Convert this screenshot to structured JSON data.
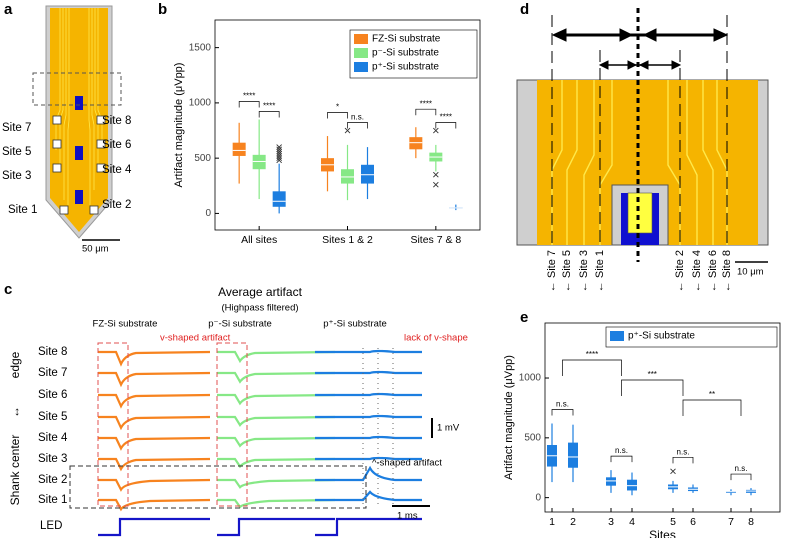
{
  "panels": {
    "a": {
      "panel_label": "a",
      "sites": [
        "Site 7",
        "Site 8",
        "Site 5",
        "Site 6",
        "Site 3",
        "Site 4",
        "Site 1",
        "Site 2"
      ],
      "scale": "50 μm"
    },
    "c": {
      "panel_label": "c",
      "title": "Average artifact",
      "subtitle": "(Highpass filtered)",
      "columns": [
        "FZ-Si substrate",
        "p⁻-Si substrate",
        "p⁺-Si substrate"
      ],
      "notes": [
        "v-shaped artifact",
        "lack of v-shape",
        "^-shaped artifact"
      ],
      "rows": [
        "Site 8",
        "Site 7",
        "Site 6",
        "Site 5",
        "Site 4",
        "Site 3",
        "Site 2",
        "Site 1"
      ],
      "side": [
        "edge",
        "↔",
        "Shank center"
      ],
      "scale_v": "1 mV",
      "scale_t": "1 ms",
      "led": "LED"
    },
    "d": {
      "panel_label": "d",
      "sites": [
        "← Site 7",
        "← Site 5",
        "← Site 3",
        "← Site 1",
        "← Site 2",
        "← Site 4",
        "← Site 6",
        "← Site 8"
      ],
      "scale": "10 μm"
    }
  },
  "chart_data": [
    {
      "type": "box",
      "panel_label": "b",
      "y_label": "Artifact magnitude (μVpp)",
      "categories": [
        "All sites",
        "Sites 1 & 2",
        "Sites 7 & 8"
      ],
      "ylim": [
        -150,
        1750
      ],
      "yticks": [
        0,
        500,
        1000,
        1500
      ],
      "legend": "upper right",
      "series": [
        {
          "name": "FZ-Si substrate",
          "color": "#f7831f",
          "values": [
            {
              "min": 270,
              "q1": 520,
              "median": 570,
              "q3": 640,
              "max": 820
            },
            {
              "min": 200,
              "q1": 380,
              "median": 440,
              "q3": 500,
              "max": 700
            },
            {
              "min": 500,
              "q1": 580,
              "median": 640,
              "q3": 690,
              "max": 780
            }
          ]
        },
        {
          "name": "p⁻-Si substrate",
          "color": "#86e886",
          "values": [
            {
              "min": 130,
              "q1": 400,
              "median": 470,
              "q3": 530,
              "max": 850
            },
            {
              "min": 120,
              "q1": 270,
              "median": 330,
              "q3": 400,
              "max": 620,
              "outliers": [
                750
              ]
            },
            {
              "min": 380,
              "q1": 470,
              "median": 510,
              "q3": 550,
              "max": 620,
              "outliers": [
                750,
                350,
                260
              ]
            }
          ]
        },
        {
          "name": "p⁺-Si substrate",
          "color": "#1c7ee0",
          "values": [
            {
              "min": 0,
              "q1": 60,
              "median": 110,
              "q3": 200,
              "max": 450,
              "outliers": [
                480,
                500,
                520,
                540,
                560,
                580,
                600
              ]
            },
            {
              "min": 130,
              "q1": 270,
              "median": 350,
              "q3": 440,
              "max": 600
            },
            {
              "min": 30,
              "q1": 45,
              "median": 50,
              "q3": 55,
              "max": 80
            }
          ]
        }
      ],
      "significance": [
        "****",
        "****",
        "*",
        "n.s.",
        "****",
        "****"
      ]
    },
    {
      "type": "box",
      "panel_label": "e",
      "y_label": "Artifact magnitude (μVpp)",
      "x_label": "Sites",
      "categories": [
        "1",
        "2",
        "3",
        "4",
        "5",
        "6",
        "7",
        "8"
      ],
      "ylim": [
        -120,
        1460
      ],
      "yticks": [
        0,
        500,
        1000
      ],
      "legend": "upper right",
      "series": [
        {
          "name": "p⁺-Si substrate",
          "color": "#1c7ee0",
          "values": [
            {
              "min": 130,
              "q1": 260,
              "median": 350,
              "q3": 440,
              "max": 620
            },
            {
              "min": 130,
              "q1": 250,
              "median": 340,
              "q3": 460,
              "max": 610
            },
            {
              "min": 40,
              "q1": 100,
              "median": 140,
              "q3": 170,
              "max": 230
            },
            {
              "min": 20,
              "q1": 60,
              "median": 100,
              "q3": 150,
              "max": 210
            },
            {
              "min": 40,
              "q1": 70,
              "median": 90,
              "q3": 110,
              "max": 140,
              "outliers": [
                220
              ]
            },
            {
              "min": 40,
              "q1": 55,
              "median": 70,
              "q3": 85,
              "max": 110
            },
            {
              "min": 20,
              "q1": 40,
              "median": 50,
              "q3": 55,
              "max": 70
            },
            {
              "min": 20,
              "q1": 40,
              "median": 55,
              "q3": 65,
              "max": 80
            }
          ]
        }
      ],
      "significance": {
        "pairs": [
          "n.s.",
          "n.s.",
          "n.s.",
          "n.s."
        ],
        "groups": [
          "****",
          "***",
          "**"
        ]
      }
    }
  ]
}
